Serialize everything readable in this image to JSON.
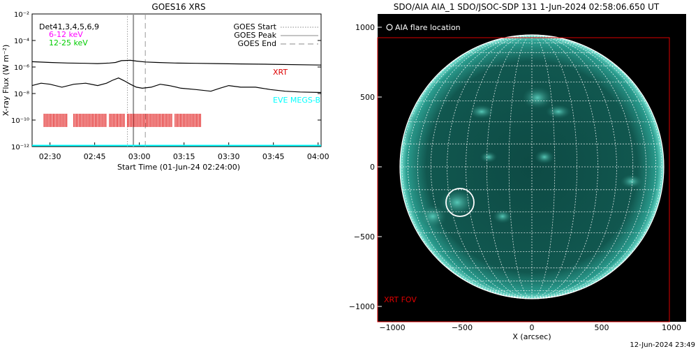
{
  "left_panel": {
    "title": "GOES16 XRS",
    "ylabel": "X-ray Flux (W m⁻²)",
    "xlabel": "Start Time (01-Jun-24 02:24:00)",
    "channels_text": "Det41,3,4,5,6,9",
    "energy_low": "6-12 keV",
    "energy_high": "12-25 keV",
    "legend": {
      "start": "GOES Start",
      "peak": "GOES Peak",
      "end": "GOES End"
    },
    "xrt_label": "XRT",
    "eve_label": "EVE MEGS-B"
  },
  "right_panel": {
    "title": "SDO/AIA AIA_1 SDO/JSOC-SDP 131  1-Jun-2024 02:58:06.650 UT",
    "legend": "AIA flare location",
    "xlabel": "X (arcsec)",
    "fov_label": "XRT FOV",
    "footer": "12-Jun-2024 23:49"
  },
  "colors": {
    "xrt": "#dd0000",
    "eve": "#00ffff",
    "energy_low": "#ff00ff",
    "energy_high": "#00cc00",
    "aia_fill": "#0d4a44",
    "grid": "#ffffff"
  },
  "chart_data": [
    {
      "type": "line",
      "title": "GOES16 XRS",
      "xlabel": "Start Time (01-Jun-24 02:24:00)",
      "ylabel": "X-ray Flux (W m⁻²)",
      "xscale": "minutes after 02:24",
      "xlim_minutes": [
        0,
        97
      ],
      "yscale": "log",
      "ylim": [
        1e-12,
        0.01
      ],
      "xticks": [
        {
          "minute": 6,
          "label": "02:30"
        },
        {
          "minute": 21,
          "label": "02:45"
        },
        {
          "minute": 36,
          "label": "03:00"
        },
        {
          "minute": 51,
          "label": "03:15"
        },
        {
          "minute": 66,
          "label": "03:30"
        },
        {
          "minute": 81,
          "label": "03:45"
        },
        {
          "minute": 96,
          "label": "04:00"
        }
      ],
      "yticks": [
        {
          "exp": -2,
          "label": "10⁻²"
        },
        {
          "exp": -4,
          "label": "10⁻⁴"
        },
        {
          "exp": -6,
          "label": "10⁻⁶"
        },
        {
          "exp": -8,
          "label": "10⁻⁸"
        },
        {
          "exp": -10,
          "label": "10⁻¹⁰"
        },
        {
          "exp": -12,
          "label": "10⁻¹²"
        }
      ],
      "series": [
        {
          "x": [
            0,
            6,
            12,
            18,
            22,
            26,
            28,
            30,
            33,
            35,
            38,
            42,
            48,
            55,
            62,
            70,
            80,
            97
          ],
          "y": [
            2.5e-06,
            2.2e-06,
            2e-06,
            1.9e-06,
            1.8e-06,
            2e-06,
            2.2e-06,
            3e-06,
            3.2e-06,
            2.8e-06,
            2.4e-06,
            2.2e-06,
            2e-06,
            1.9e-06,
            1.8e-06,
            1.7e-06,
            1.6e-06,
            1.4e-06
          ]
        },
        {
          "x": [
            0,
            3,
            6,
            10,
            14,
            18,
            22,
            25,
            27,
            29,
            31,
            33,
            35,
            37,
            40,
            43,
            46,
            50,
            55,
            60,
            63,
            66,
            70,
            75,
            80,
            85,
            90,
            97
          ],
          "y": [
            4e-08,
            6e-08,
            5e-08,
            3e-08,
            5e-08,
            6e-08,
            4e-08,
            6e-08,
            1e-07,
            1.5e-07,
            9e-08,
            5e-08,
            3e-08,
            2.5e-08,
            3e-08,
            5e-08,
            4e-08,
            2.5e-08,
            2e-08,
            1.5e-08,
            2.5e-08,
            4e-08,
            3e-08,
            3e-08,
            2e-08,
            1.5e-08,
            1.3e-08,
            1.2e-08
          ]
        },
        {
          "x": [
            0,
            97
          ],
          "y": [
            1.2e-12,
            1.2e-12
          ]
        }
      ],
      "xrt_intervals": [
        [
          4,
          12
        ],
        [
          14,
          25
        ],
        [
          26,
          31
        ],
        [
          32,
          47
        ],
        [
          48,
          57
        ]
      ],
      "event_lines_minutes": {
        "start": 32,
        "peak": 34,
        "end": 38
      }
    },
    {
      "type": "scatter",
      "title": "SDO/AIA AIA_1 SDO/JSOC-SDP 131  1-Jun-2024 02:58:06.650 UT",
      "xlabel": "X (arcsec)",
      "xlim": [
        -1100,
        1100
      ],
      "ylim": [
        -1100,
        1100
      ],
      "xticks": [
        -1000,
        -500,
        0,
        500,
        1000
      ],
      "yticks": [
        -1000,
        -500,
        0,
        500,
        1000
      ],
      "solar_radius_arcsec": 945,
      "flare_location": {
        "x": -515,
        "y": -255
      },
      "xrt_fov": {
        "x_range": [
          -1100,
          1000
        ],
        "y_range": [
          -1110,
          930
        ]
      }
    }
  ]
}
